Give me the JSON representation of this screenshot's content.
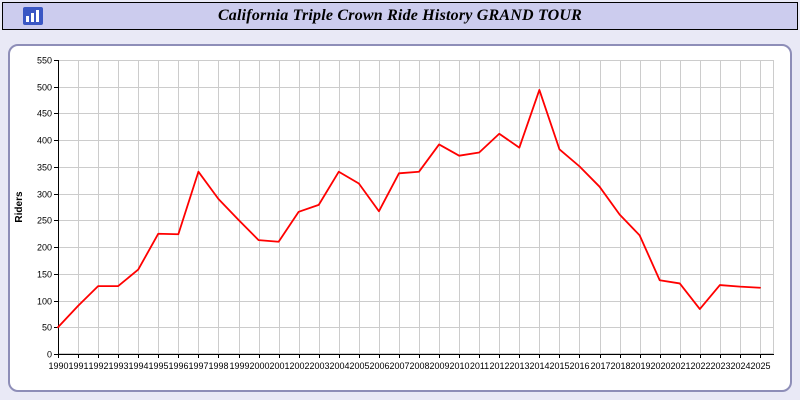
{
  "header": {
    "title": "California Triple Crown Ride History GRAND TOUR",
    "icon": "bar-chart-icon"
  },
  "colors": {
    "page_bg": "#e9e9f6",
    "header_bg": "#ccccee",
    "box_border": "#8e8eb8",
    "grid": "#cccccc",
    "axis": "#000000",
    "line": "#ff0000"
  },
  "chart_data": {
    "type": "line",
    "title": "California Triple Crown Ride History GRAND TOUR",
    "xlabel": "",
    "ylabel": "Riders",
    "ylim": [
      0,
      550
    ],
    "ytick_step": 50,
    "grid": true,
    "legend": "none",
    "x": [
      1990,
      1991,
      1992,
      1993,
      1994,
      1995,
      1996,
      1997,
      1998,
      1999,
      2000,
      2001,
      2002,
      2003,
      2004,
      2005,
      2006,
      2007,
      2008,
      2009,
      2010,
      2011,
      2012,
      2013,
      2014,
      2015,
      2016,
      2017,
      2018,
      2019,
      2020,
      2021,
      2022,
      2023,
      2024,
      2025
    ],
    "series": [
      {
        "name": "Riders",
        "color": "#ff0000",
        "values": [
          50,
          90,
          127,
          127,
          158,
          225,
          224,
          341,
          290,
          251,
          213,
          210,
          266,
          279,
          341,
          319,
          267,
          338,
          341,
          392,
          371,
          377,
          412,
          386,
          494,
          383,
          351,
          313,
          261,
          222,
          138,
          132,
          84,
          129,
          126,
          124
        ]
      }
    ]
  }
}
